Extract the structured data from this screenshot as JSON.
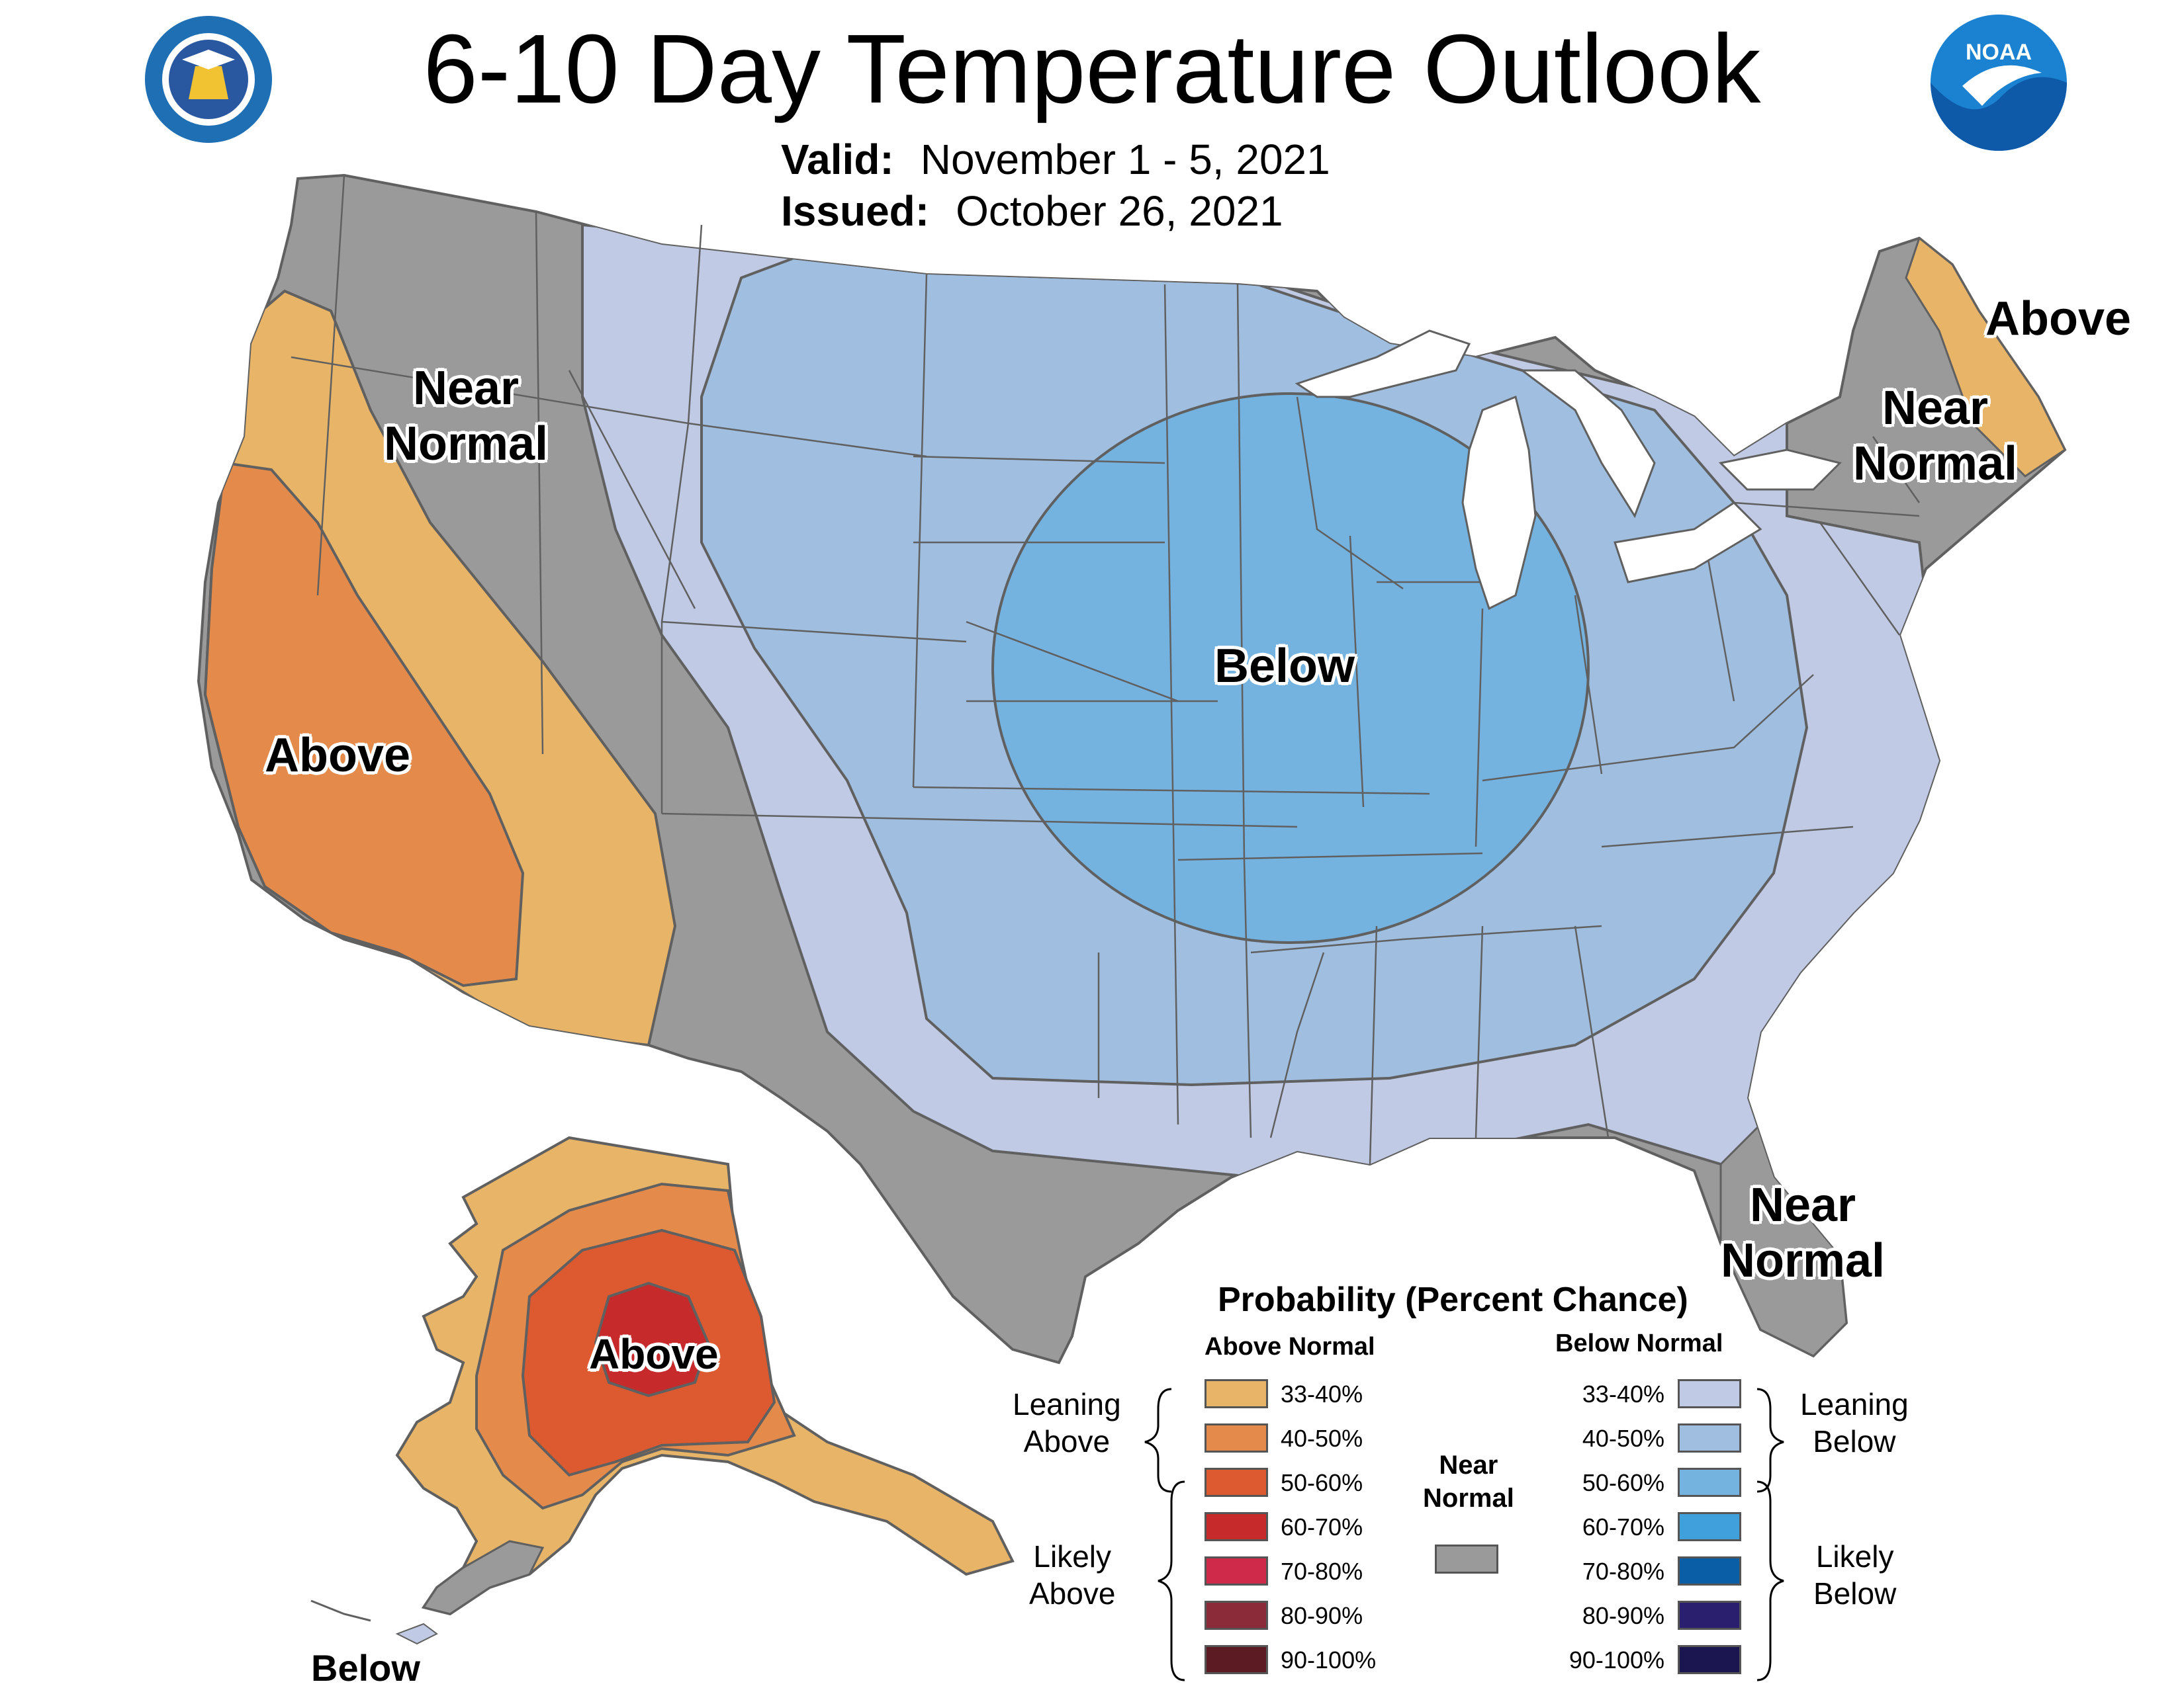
{
  "header": {
    "title": "6-10 Day Temperature Outlook",
    "valid_label": "Valid:",
    "valid_value": "November 1 - 5, 2021",
    "issued_label": "Issued:",
    "issued_value": "October 26, 2021"
  },
  "logos": {
    "left": "department-of-commerce-seal",
    "left_text": "DEPARTMENT OF COMMERCE · UNITED STATES OF AMERICA",
    "right": "noaa-logo",
    "right_text": "NOAA"
  },
  "regions": {
    "nw_near_normal_line1": "Near",
    "nw_near_normal_line2": "Normal",
    "west_above": "Above",
    "central_below": "Below",
    "ne_above": "Above",
    "ne_near_normal_line1": "Near",
    "ne_near_normal_line2": "Normal",
    "fl_near_normal_line1": "Near",
    "fl_near_normal_line2": "Normal",
    "ak_above": "Above",
    "ak_below": "Below"
  },
  "colors": {
    "above_33_40": "#e8b468",
    "above_40_50": "#e48a4a",
    "above_50_60": "#dd5a30",
    "above_60_70": "#c62a2a",
    "above_70_80": "#d02a4a",
    "above_80_90": "#8b2a38",
    "above_90_100": "#5c1a22",
    "near_normal": "#9a9a9a",
    "below_33_40": "#c0cae4",
    "below_40_50": "#a0bee0",
    "below_50_60": "#74b2e0",
    "below_60_70": "#3fa0dc",
    "below_70_80": "#0a5ea6",
    "below_80_90": "#2a1e6e",
    "below_90_100": "#1c1650",
    "border": "#606060"
  },
  "legend": {
    "title": "Probability (Percent Chance)",
    "above_header": "Above Normal",
    "below_header": "Below Normal",
    "near_normal_line1": "Near",
    "near_normal_line2": "Normal",
    "leaning_above_line1": "Leaning",
    "leaning_above_line2": "Above",
    "likely_above_line1": "Likely",
    "likely_above_line2": "Above",
    "leaning_below_line1": "Leaning",
    "leaning_below_line2": "Below",
    "likely_below_line1": "Likely",
    "likely_below_line2": "Below",
    "above_items": [
      {
        "label": "33-40%",
        "color": "#e8b468"
      },
      {
        "label": "40-50%",
        "color": "#e48a4a"
      },
      {
        "label": "50-60%",
        "color": "#dd5a30"
      },
      {
        "label": "60-70%",
        "color": "#c62a2a"
      },
      {
        "label": "70-80%",
        "color": "#d02a4a"
      },
      {
        "label": "80-90%",
        "color": "#8b2a38"
      },
      {
        "label": "90-100%",
        "color": "#5c1a22"
      }
    ],
    "below_items": [
      {
        "label": "33-40%",
        "color": "#c0cae4"
      },
      {
        "label": "40-50%",
        "color": "#a0bee0"
      },
      {
        "label": "50-60%",
        "color": "#74b2e0"
      },
      {
        "label": "60-70%",
        "color": "#3fa0dc"
      },
      {
        "label": "70-80%",
        "color": "#0a5ea6"
      },
      {
        "label": "80-90%",
        "color": "#2a1e6e"
      },
      {
        "label": "90-100%",
        "color": "#1c1650"
      }
    ]
  }
}
